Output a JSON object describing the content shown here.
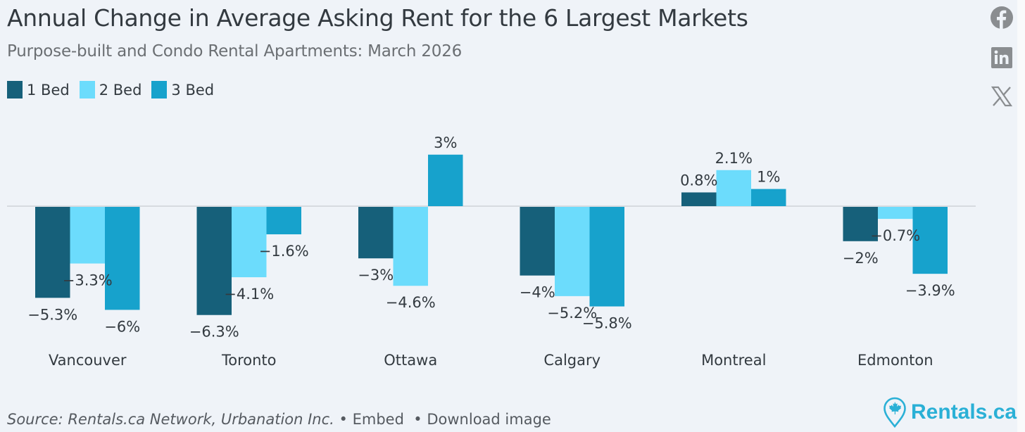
{
  "header": {
    "title": "Annual Change in Average Asking Rent for the 6 Largest Markets",
    "subtitle": "Purpose-built and Condo Rental Apartments: March 2026"
  },
  "social": [
    {
      "name": "facebook-icon",
      "label": "Facebook"
    },
    {
      "name": "linkedin-icon",
      "label": "LinkedIn"
    },
    {
      "name": "x-icon",
      "label": "X"
    }
  ],
  "footer": {
    "source": "Source: Rentals.ca Network, Urbanation Inc.",
    "separator": "•",
    "embed_label": "Embed",
    "download_label": "Download image"
  },
  "brand": {
    "name": "Rentals.ca",
    "color": "#2ab0d6"
  },
  "chart_data": {
    "type": "bar",
    "title": "Annual Change in Average Asking Rent for the 6 Largest Markets",
    "subtitle": "Purpose-built and Condo Rental Apartments: March 2026",
    "xlabel": "",
    "ylabel": "",
    "categories": [
      "Vancouver",
      "Toronto",
      "Ottawa",
      "Calgary",
      "Montreal",
      "Edmonton"
    ],
    "series": [
      {
        "name": "1 Bed",
        "color": "#16607a",
        "values": [
          -5.3,
          -6.3,
          -3,
          -4,
          0.8,
          -2
        ],
        "labels": [
          "−5.3%",
          "−6.3%",
          "−3%",
          "−4%",
          "0.8%",
          "−2%"
        ]
      },
      {
        "name": "2 Bed",
        "color": "#6cdcfc",
        "values": [
          -3.3,
          -4.1,
          -4.6,
          -5.2,
          2.1,
          -0.7
        ],
        "labels": [
          "−3.3%",
          "−4.1%",
          "−4.6%",
          "−5.2%",
          "2.1%",
          "−0.7%"
        ]
      },
      {
        "name": "3 Bed",
        "color": "#17a2cc",
        "values": [
          -6,
          -1.6,
          3,
          -5.8,
          1,
          -3.9
        ],
        "labels": [
          "−6%",
          "−1.6%",
          "3%",
          "−5.8%",
          "1%",
          "−3.9%"
        ]
      }
    ],
    "ylim": [
      -7,
      3.5
    ],
    "grid": false,
    "zero_line": true,
    "legend": "top-left",
    "data_labels": true
  }
}
